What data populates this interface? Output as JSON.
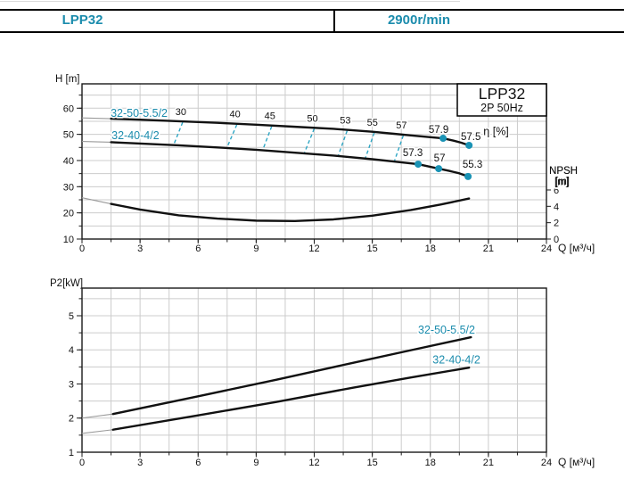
{
  "header": {
    "model": "LPP32",
    "speed": "2900r/min"
  },
  "colors": {
    "accent": "#1b8cad",
    "dash": "#2ea6c4",
    "dot": "#1a93b5",
    "grid": "#cccccc",
    "frame": "#1a1a1a",
    "curve": "#111111",
    "lead": "#9a9a9a",
    "text": "#111111"
  },
  "chart_data": [
    {
      "type": "line",
      "title": "LPP32",
      "subtitle": "2P 50Hz",
      "xlabel": "Q [м³/ч]",
      "ylabel": "H [m]",
      "y2label_1": "NPSH",
      "y2label_2": "[m]",
      "eta_label": "η [%]",
      "xlim": [
        0,
        24
      ],
      "ylim": [
        10,
        69.3
      ],
      "y2lim": [
        0,
        6
      ],
      "grid": "on",
      "x_ticks": [
        0,
        3,
        6,
        9,
        12,
        15,
        18,
        21,
        24
      ],
      "x_minor_step": 1.5,
      "y_ticks": [
        10,
        20,
        30,
        40,
        50,
        60
      ],
      "y_minor_step": 5,
      "y2_ticks": [
        0,
        2,
        4,
        6
      ],
      "series": [
        {
          "name": "32-50-5.5/2",
          "axis": "y",
          "lead": [
            [
              0,
              56.3
            ],
            [
              1.5,
              56.0
            ]
          ],
          "points": [
            [
              1.5,
              56.0
            ],
            [
              3,
              55.6
            ],
            [
              5,
              55.0
            ],
            [
              7,
              54.4
            ],
            [
              9,
              53.7
            ],
            [
              11,
              52.9
            ],
            [
              13,
              52.1
            ],
            [
              15,
              51.0
            ],
            [
              16,
              50.3
            ],
            [
              17,
              49.6
            ],
            [
              18,
              48.9
            ],
            [
              18.66,
              48.5
            ],
            [
              19.2,
              47.6
            ],
            [
              19.6,
              46.8
            ],
            [
              20,
              45.8
            ]
          ],
          "label_pos": {
            "q": 2.95,
            "v": 58.1
          },
          "dots": [
            {
              "q": 18.66,
              "v": 48.5,
              "label": "57.9",
              "dx": -5,
              "dy": -10
            },
            {
              "q": 20.0,
              "v": 45.8,
              "label": "57.5",
              "dx": 2,
              "dy": -10
            }
          ]
        },
        {
          "name": "32-40-4/2",
          "axis": "y",
          "lead": [
            [
              0,
              47.3
            ],
            [
              1.5,
              47.0
            ]
          ],
          "points": [
            [
              1.5,
              47.0
            ],
            [
              3,
              46.5
            ],
            [
              5,
              45.8
            ],
            [
              7,
              45.0
            ],
            [
              9,
              44.1
            ],
            [
              11,
              43.0
            ],
            [
              13,
              41.9
            ],
            [
              15,
              40.5
            ],
            [
              16,
              39.7
            ],
            [
              17,
              38.9
            ],
            [
              17.37,
              38.6
            ],
            [
              18.43,
              36.9
            ],
            [
              19,
              36.0
            ],
            [
              19.5,
              35.1
            ],
            [
              19.95,
              33.9
            ]
          ],
          "label_pos": {
            "q": 2.76,
            "v": 49.6
          },
          "dots": [
            {
              "q": 17.37,
              "v": 38.6,
              "label": "57.3",
              "dx": -6,
              "dy": -13
            },
            {
              "q": 18.43,
              "v": 36.9,
              "label": "57",
              "dx": 1,
              "dy": -12
            },
            {
              "q": 19.95,
              "v": 33.9,
              "label": "55.3",
              "dx": 5,
              "dy": -14
            }
          ]
        },
        {
          "name": "NPSH",
          "axis": "y2",
          "lead": [
            [
              0,
              5.05
            ],
            [
              1.5,
              4.3
            ]
          ],
          "points": [
            [
              1.5,
              4.3
            ],
            [
              3,
              3.6
            ],
            [
              5,
              2.9
            ],
            [
              7,
              2.5
            ],
            [
              9,
              2.25
            ],
            [
              11,
              2.2
            ],
            [
              13,
              2.4
            ],
            [
              15,
              2.85
            ],
            [
              17,
              3.55
            ],
            [
              18.5,
              4.2
            ],
            [
              20,
              4.95
            ]
          ],
          "dots": []
        }
      ],
      "efficiency_contours": [
        {
          "label": "30",
          "q_top": 5.2,
          "q_bot": 4.75
        },
        {
          "label": "40",
          "q_top": 8.0,
          "q_bot": 7.5
        },
        {
          "label": "45",
          "q_top": 9.8,
          "q_bot": 9.35
        },
        {
          "label": "50",
          "q_top": 12.0,
          "q_bot": 11.5
        },
        {
          "label": "53",
          "q_top": 13.7,
          "q_bot": 13.25
        },
        {
          "label": "55",
          "q_top": 15.1,
          "q_bot": 14.65
        },
        {
          "label": "57",
          "q_top": 16.6,
          "q_bot": 16.15
        }
      ],
      "annotations": [
        {
          "text": "η [%]",
          "q": 21.4,
          "v": 51.0,
          "size": 12.5
        },
        {
          "text": "NPSH",
          "q": 24.88,
          "v": 36.2,
          "size": 11.5
        },
        {
          "text": "[m]",
          "q": 24.78,
          "v": 32.0,
          "size": 11.5
        }
      ]
    },
    {
      "type": "line",
      "xlabel": "Q [м³/ч]",
      "ylabel": "P2[kW]",
      "xlim": [
        0,
        24
      ],
      "ylim": [
        1,
        5.81
      ],
      "grid": "on",
      "x_ticks": [
        0,
        3,
        6,
        9,
        12,
        15,
        18,
        21,
        24
      ],
      "x_minor_step": 1.5,
      "y_ticks": [
        1,
        2,
        3,
        4,
        5
      ],
      "y_minor_step": 0.5,
      "series": [
        {
          "name": "32-50-5.5/2",
          "axis": "y",
          "lead": [
            [
              0,
              2.0
            ],
            [
              1.6,
              2.12
            ]
          ],
          "points": [
            [
              1.6,
              2.12
            ],
            [
              6,
              2.64
            ],
            [
              10,
              3.12
            ],
            [
              14,
              3.62
            ],
            [
              17,
              3.99
            ],
            [
              20.1,
              4.37
            ]
          ],
          "label_pos": {
            "q": 18.84,
            "v": 4.58
          },
          "dots": []
        },
        {
          "name": "32-40-4/2",
          "axis": "y",
          "lead": [
            [
              0,
              1.55
            ],
            [
              1.6,
              1.66
            ]
          ],
          "points": [
            [
              1.6,
              1.66
            ],
            [
              6,
              2.08
            ],
            [
              10,
              2.47
            ],
            [
              14,
              2.89
            ],
            [
              17,
              3.19
            ],
            [
              20,
              3.48
            ]
          ],
          "label_pos": {
            "q": 19.35,
            "v": 3.71
          },
          "dots": []
        }
      ],
      "efficiency_contours": [],
      "annotations": []
    }
  ]
}
